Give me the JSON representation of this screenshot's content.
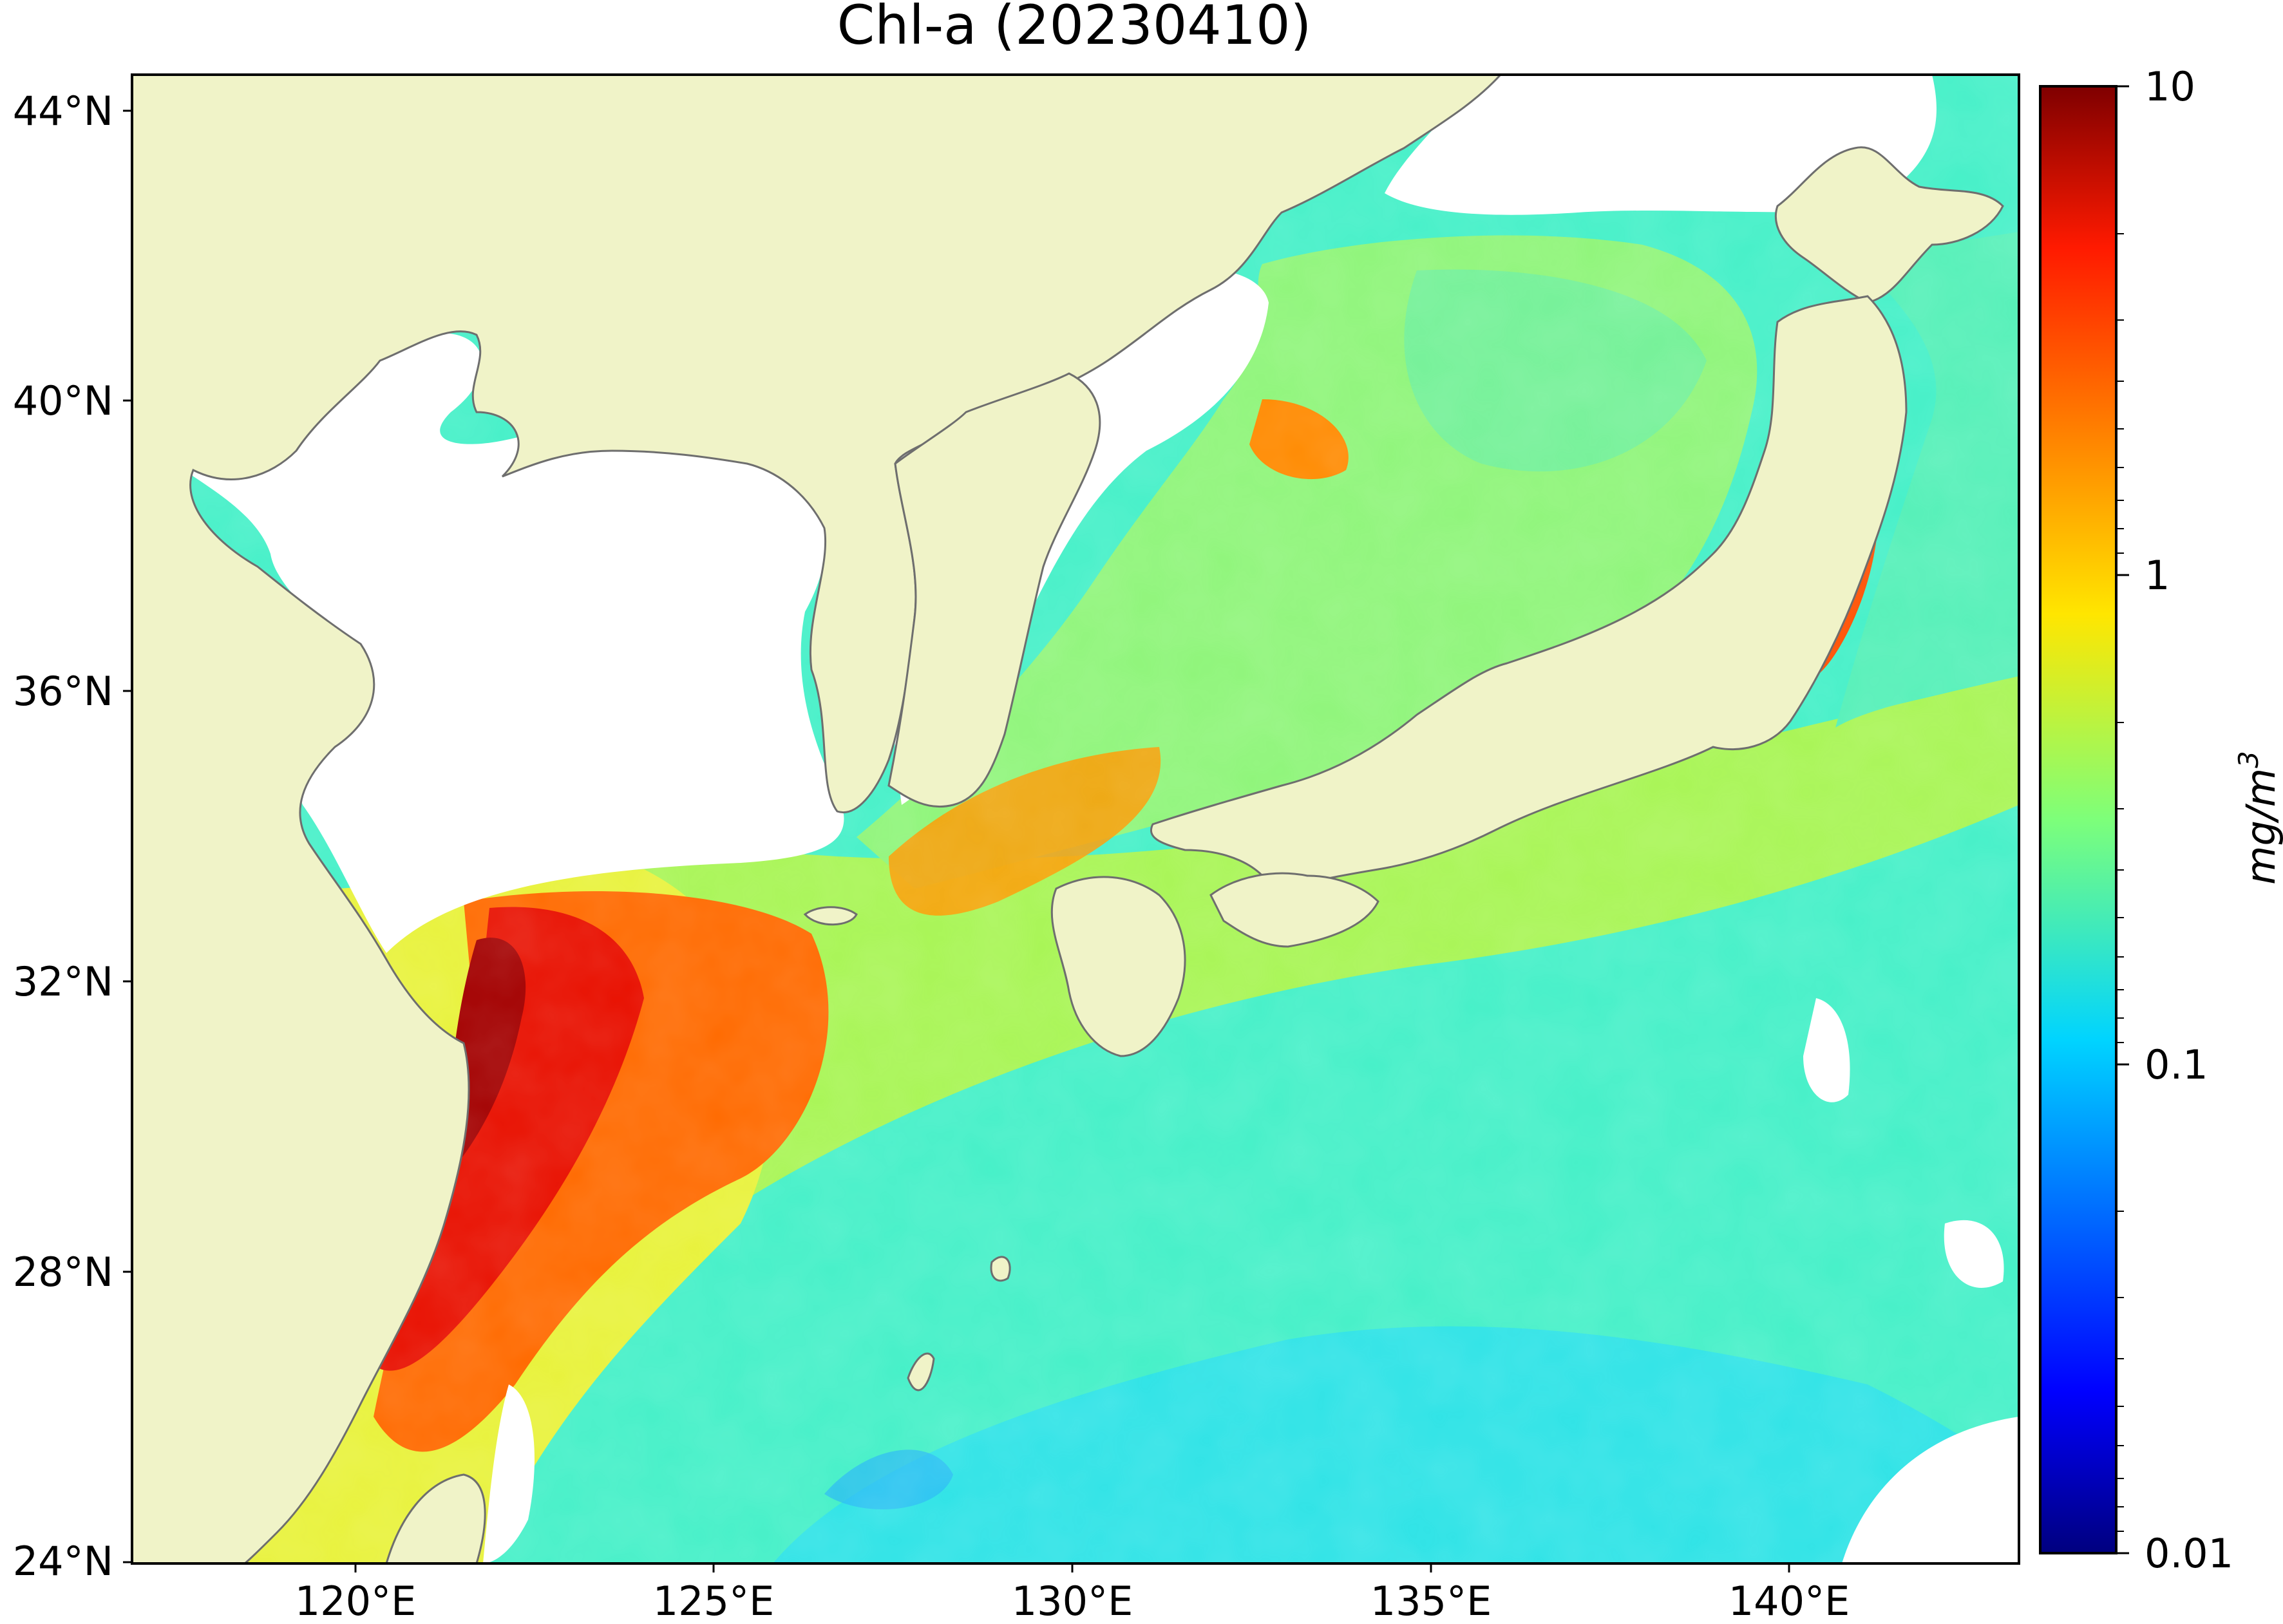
{
  "title": "Chl-a (20230410)",
  "map": {
    "x_ticks": [
      "120°E",
      "125°E",
      "130°E",
      "135°E",
      "140°E"
    ],
    "y_ticks": [
      "44°N",
      "40°N",
      "36°N",
      "32°N",
      "28°N",
      "24°N"
    ],
    "lon_range": [
      116.7,
      143.0
    ],
    "lat_range": [
      24.0,
      44.6
    ],
    "land_color": "#f0f3c8",
    "coastline_color": "#6e6e6e",
    "no_data_color": "#ffffff"
  },
  "colorbar": {
    "scale": "log",
    "range": [
      0.01,
      10
    ],
    "tick_labels": [
      "10",
      "1",
      "0.1",
      "0.01"
    ],
    "label_base": "mg/m",
    "label_exp": "3",
    "colormap": "jet"
  }
}
